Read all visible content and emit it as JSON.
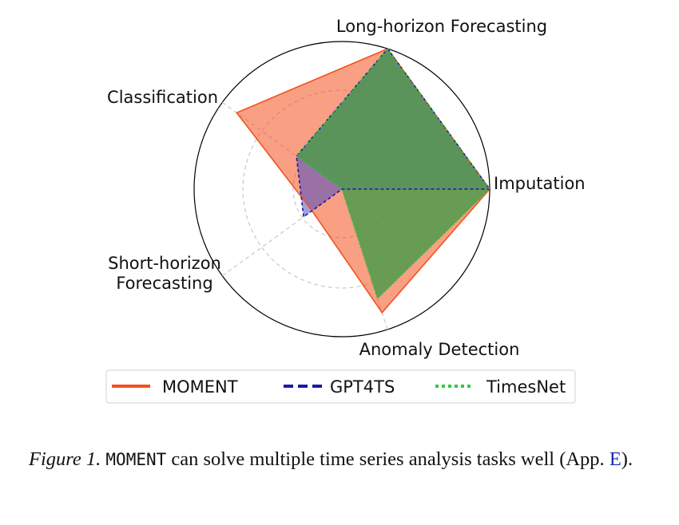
{
  "chart_data": {
    "type": "radar",
    "axes": [
      "Long-horizon Forecasting",
      "Imputation",
      "Anomaly Detection",
      "Short-horizon\nForecasting",
      "Classification"
    ],
    "rmax": 1.0,
    "grid_rings": [
      0.33,
      0.67
    ],
    "series": [
      {
        "name": "MOMENT",
        "values": [
          1.0,
          1.0,
          0.88,
          0.25,
          0.88
        ],
        "color": "#f4511e",
        "fill": "#f4511e",
        "fill_opacity": 0.55,
        "dash": ""
      },
      {
        "name": "GPT4TS",
        "values": [
          1.0,
          1.0,
          0.0,
          0.32,
          0.38
        ],
        "color": "#1a1aa8",
        "fill": "#3b44c8",
        "fill_opacity": 0.5,
        "dash": "4,3"
      },
      {
        "name": "TimesNet",
        "values": [
          1.0,
          1.0,
          0.78,
          0.0,
          0.38
        ],
        "color": "#2ecc40",
        "fill": "#4f9a4c",
        "fill_opacity": 0.85,
        "dash": "2,3"
      }
    ],
    "legend": {
      "position": "bottom",
      "entries": [
        "MOMENT",
        "GPT4TS",
        "TimesNet"
      ]
    }
  },
  "caption": {
    "figure_label": "Figure 1.",
    "model_name": "MOMENT",
    "text_main": " can solve multiple time series analysis tasks well (App. ",
    "ref": "E",
    "text_end": ")."
  }
}
